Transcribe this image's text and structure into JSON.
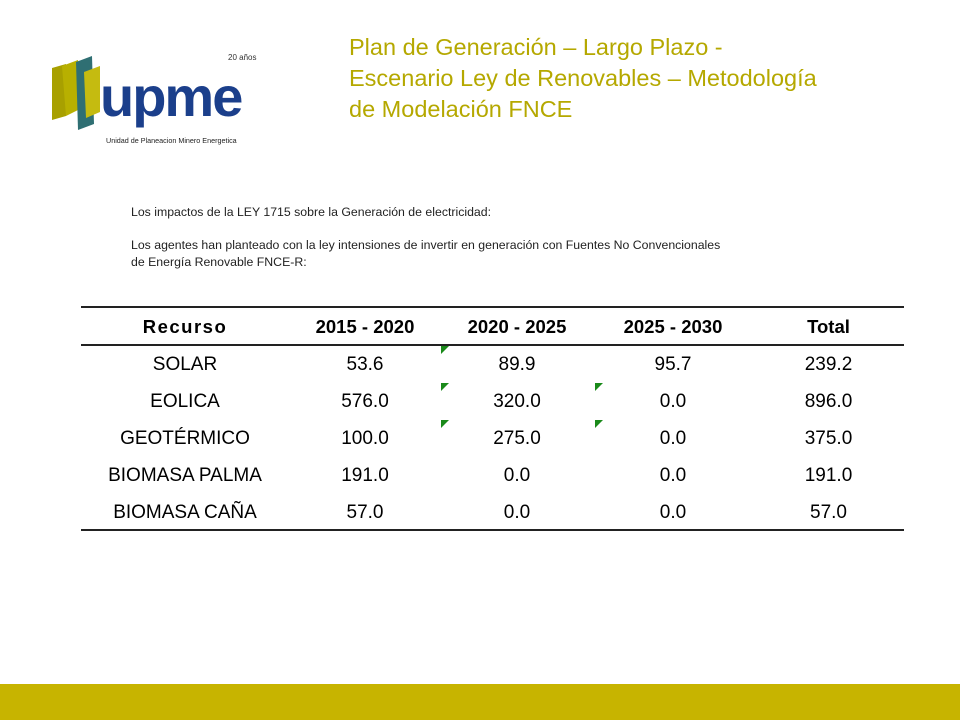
{
  "logo": {
    "wordmark": "upme",
    "anniversary": "20 años",
    "subtitle": "Unidad de Planeacion Minero Energetica"
  },
  "title_lines": [
    "Plan de Generación – Largo Plazo -",
    "Escenario Ley de Renovables – Metodología",
    "de Modelación FNCE"
  ],
  "intro": {
    "line1": "Los impactos de la LEY 1715 sobre la Generación de electricidad:",
    "line2a": "Los agentes han planteado con la ley intensiones de invertir en generación con Fuentes No Convencionales",
    "line2b": "de Energía Renovable FNCE-R:"
  },
  "table": {
    "headers": [
      "Recurso",
      "2015 - 2020",
      "2020 - 2025",
      "2025 - 2030",
      "Total"
    ],
    "rows": [
      [
        "SOLAR",
        "53.6",
        "89.9",
        "95.7",
        "239.2"
      ],
      [
        "EOLICA",
        "576.0",
        "320.0",
        "0.0",
        "896.0"
      ],
      [
        "GEOTÉRMICO",
        "100.0",
        "275.0",
        "0.0",
        "375.0"
      ],
      [
        "BIOMASA PALMA",
        "191.0",
        "0.0",
        "0.0",
        "191.0"
      ],
      [
        "BIOMASA CAÑA",
        "57.0",
        "0.0",
        "0.0",
        "57.0"
      ]
    ]
  },
  "colors": {
    "title": "#b5a800",
    "footer_bar": "#c7b400",
    "logo_blue": "#1b3f8b",
    "logo_olive": "#a8a000",
    "logo_teal": "#2f6f73",
    "flag_green": "#1a8a1a"
  }
}
